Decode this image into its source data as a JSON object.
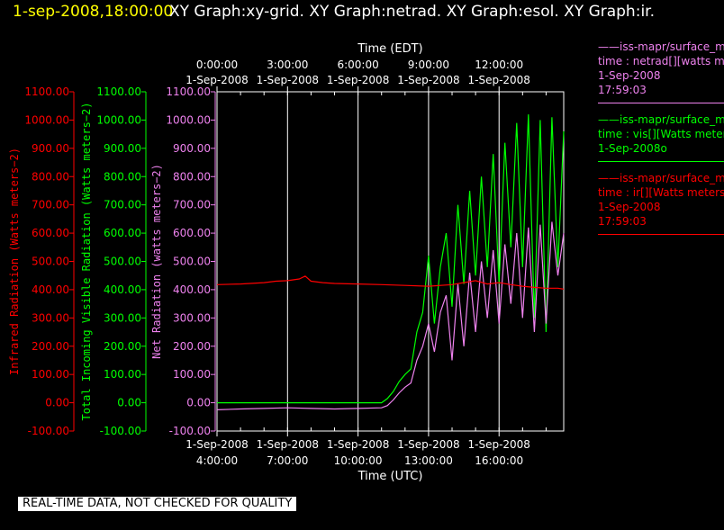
{
  "header": {
    "datetime": "1-sep-2008,18:00:00",
    "titles": "XY Graph:xy-grid.  XY Graph:netrad.  XY Graph:esol.  XY Graph:ir."
  },
  "legend": [
    {
      "lines": [
        "——iss-mapr/surface_m",
        "time : netrad[][watts m",
        "1-Sep-2008",
        "17:59:03"
      ],
      "color": "#ee82ee"
    },
    {
      "lines": [
        "——iss-mapr/surface_m",
        "time : vis[][Watts meter",
        "1-Sep-2008o"
      ],
      "color": "#00ff00"
    },
    {
      "lines": [
        "——iss-mapr/surface_m",
        "time : ir[][Watts meters",
        "1-Sep-2008",
        "17:59:03"
      ],
      "color": "#ff0000"
    }
  ],
  "banner": "REAL-TIME DATA, NOT CHECKED FOR QUALITY",
  "chart_data": {
    "type": "line",
    "grid": true,
    "x_utc": [
      "2008-09-01T04:00",
      "2008-09-01T18:45"
    ],
    "top_axis": {
      "label": "Time (EDT)",
      "ticks": [
        [
          "0:00:00",
          "1-Sep-2008"
        ],
        [
          "3:00:00",
          "1-Sep-2008"
        ],
        [
          "6:00:00",
          "1-Sep-2008"
        ],
        [
          "9:00:00",
          "1-Sep-2008"
        ],
        [
          "12:00:00",
          "1-Sep-2008"
        ]
      ]
    },
    "bottom_axis": {
      "label": "Time (UTC)",
      "ticks": [
        [
          "1-Sep-2008",
          "4:00:00"
        ],
        [
          "1-Sep-2008",
          "7:00:00"
        ],
        [
          "1-Sep-2008",
          "10:00:00"
        ],
        [
          "1-Sep-2008",
          "13:00:00"
        ],
        [
          "1-Sep-2008",
          "16:00:00"
        ]
      ]
    },
    "y_axes": [
      {
        "label": "Infrared Radiation (Watts meters−2)",
        "color": "#ff0000",
        "range": [
          -100,
          1100
        ]
      },
      {
        "label": "Total Incoming Visible Radiation (Watts meters−2)",
        "color": "#00ff00",
        "range": [
          -100,
          1100
        ]
      },
      {
        "label": "Net Radiation (watts meters−2)",
        "color": "#ee82ee",
        "range": [
          -100,
          1100
        ]
      }
    ],
    "y_tick_labels": [
      "1100.00",
      "1000.00",
      "900.00",
      "800.00",
      "700.00",
      "600.00",
      "500.00",
      "400.00",
      "300.00",
      "200.00",
      "100.00",
      "0.00",
      "-100.00"
    ],
    "series": [
      {
        "color": "#ff0000",
        "x": [
          "04:00",
          "05:00",
          "06:00",
          "06:30",
          "07:00",
          "07:30",
          "07:45",
          "08:00",
          "08:30",
          "09:00",
          "10:00",
          "11:00",
          "12:00",
          "13:00",
          "14:00",
          "14:30",
          "15:00",
          "15:30",
          "16:00",
          "16:30",
          "17:00",
          "17:30",
          "18:00",
          "18:30",
          "18:45"
        ],
        "values": [
          418,
          420,
          425,
          430,
          432,
          438,
          448,
          430,
          425,
          422,
          420,
          418,
          415,
          412,
          418,
          425,
          432,
          420,
          425,
          418,
          412,
          408,
          405,
          405,
          402
        ]
      },
      {
        "color": "#00ff00",
        "x": [
          "04:00",
          "05:00",
          "06:00",
          "07:00",
          "08:00",
          "09:00",
          "10:00",
          "11:00",
          "11:15",
          "11:30",
          "11:45",
          "12:00",
          "12:15",
          "12:30",
          "12:45",
          "13:00",
          "13:15",
          "13:30",
          "13:45",
          "14:00",
          "14:15",
          "14:30",
          "14:45",
          "15:00",
          "15:15",
          "15:30",
          "15:45",
          "16:00",
          "16:15",
          "16:30",
          "16:45",
          "17:00",
          "17:15",
          "17:30",
          "17:45",
          "18:00",
          "18:15",
          "18:30",
          "18:45"
        ],
        "values": [
          0,
          0,
          0,
          0,
          0,
          0,
          0,
          0,
          15,
          40,
          75,
          100,
          120,
          250,
          320,
          520,
          280,
          480,
          600,
          340,
          700,
          420,
          750,
          450,
          800,
          480,
          880,
          420,
          920,
          550,
          990,
          480,
          1020,
          300,
          1000,
          250,
          1010,
          480,
          960
        ]
      },
      {
        "color": "#ee82ee",
        "x": [
          "04:00",
          "05:00",
          "06:00",
          "07:00",
          "08:00",
          "09:00",
          "10:00",
          "11:00",
          "11:15",
          "11:30",
          "11:45",
          "12:00",
          "12:15",
          "12:30",
          "12:45",
          "13:00",
          "13:15",
          "13:30",
          "13:45",
          "14:00",
          "14:15",
          "14:30",
          "14:45",
          "15:00",
          "15:15",
          "15:30",
          "15:45",
          "16:00",
          "16:15",
          "16:30",
          "16:45",
          "17:00",
          "17:15",
          "17:30",
          "17:45",
          "18:00",
          "18:15",
          "18:30",
          "18:45"
        ],
        "values": [
          -25,
          -22,
          -20,
          -18,
          -20,
          -22,
          -20,
          -18,
          -10,
          10,
          35,
          55,
          70,
          150,
          200,
          280,
          180,
          320,
          380,
          150,
          420,
          200,
          460,
          250,
          500,
          300,
          540,
          280,
          560,
          350,
          600,
          300,
          620,
          250,
          630,
          280,
          640,
          450,
          600
        ]
      }
    ]
  }
}
